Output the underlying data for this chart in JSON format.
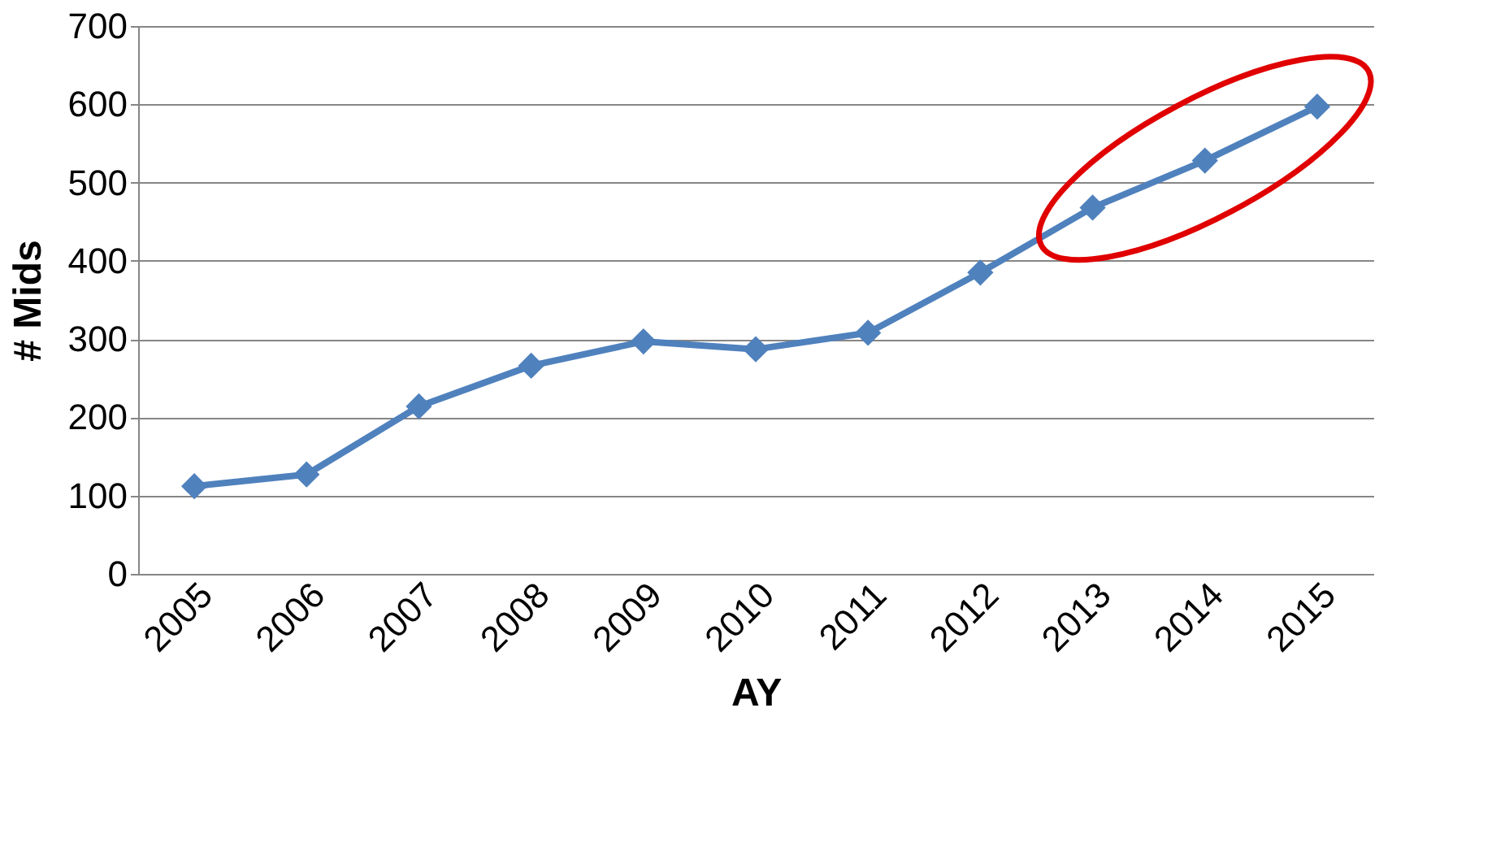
{
  "chart_data": {
    "type": "line",
    "xlabel": "AY",
    "ylabel": "# Mids",
    "categories": [
      "2005",
      "2006",
      "2007",
      "2008",
      "2009",
      "2010",
      "2011",
      "2012",
      "2013",
      "2014",
      "2015"
    ],
    "series": [
      {
        "color": "#4f81bd",
        "values": [
          112,
          127,
          214,
          266,
          297,
          287,
          308,
          385,
          468,
          528,
          597
        ]
      }
    ],
    "ylim": [
      0,
      700
    ],
    "yticks": [
      0,
      100,
      200,
      300,
      400,
      500,
      600,
      700
    ],
    "grid": "y",
    "marker": "diamond",
    "line_style": "solid"
  }
}
